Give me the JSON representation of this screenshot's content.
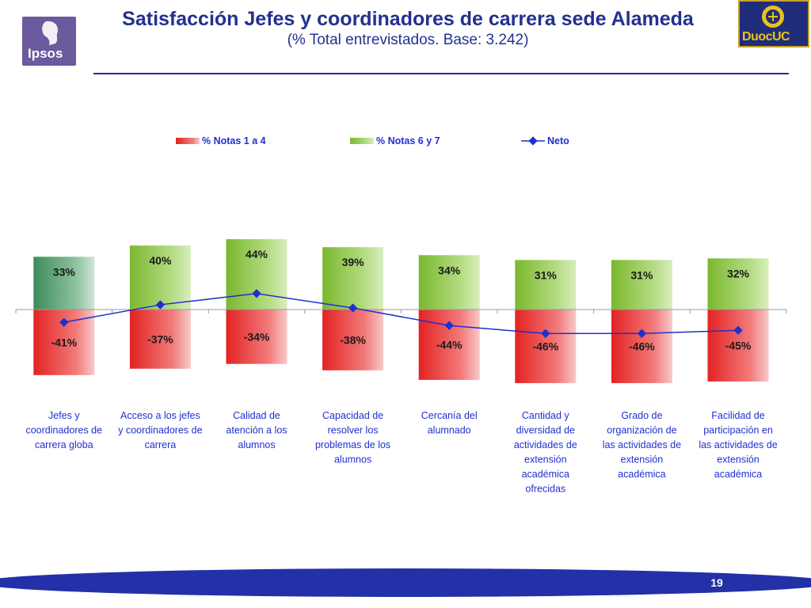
{
  "header": {
    "title": "Satisfacción Jefes y coordinadores de carrera sede Alameda",
    "subtitle": "(% Total entrevistados. Base: 3.242)",
    "logo_left": "Ipsos",
    "logo_right": "DuocUC"
  },
  "footer": {
    "page_number": "19"
  },
  "colors": {
    "title": "#22318f",
    "negative": "#e83a3a",
    "positive": "#8cc63f",
    "first_positive": "#4e9a6a",
    "line": "#1f2fd0",
    "footer": "#2330a8"
  },
  "chart_data": {
    "type": "bar",
    "categories": [
      "Jefes y coordinadores de carrera globa",
      "Acceso a los jefes y coordinadores de carrera",
      "Calidad de atención a los alumnos",
      "Capacidad de resolver los problemas de los alumnos",
      "Cercanía del alumnado",
      "Cantidad y diversidad de actividades de extensión académica ofrecidas",
      "Grado de organización de las actividades de extensión académica",
      "Facilidad de participación en las actividades de extensión académica"
    ],
    "category_lines": [
      [
        "Jefes y",
        "coordinadores de",
        "carrera globa"
      ],
      [
        "Acceso a los jefes",
        "y coordinadores de",
        "carrera"
      ],
      [
        "Calidad de",
        "atención a los",
        "alumnos"
      ],
      [
        "Capacidad de",
        "resolver los",
        "problemas de los",
        "alumnos"
      ],
      [
        "Cercanía del",
        "alumnado"
      ],
      [
        "Cantidad y",
        "diversidad de",
        "actividades de",
        "extensión",
        "académica",
        "ofrecidas"
      ],
      [
        "Grado de",
        "organización de",
        "las actividades de",
        "extensión",
        "académica"
      ],
      [
        "Facilidad de",
        "participación en",
        "las actividades de",
        "extensión",
        "académica"
      ]
    ],
    "series": [
      {
        "name": "% Notas 1 a 4",
        "kind": "bar",
        "values": [
          -41,
          -37,
          -34,
          -38,
          -44,
          -46,
          -46,
          -45
        ],
        "labels": [
          "-41%",
          "-37%",
          "-34%",
          "-38%",
          "-44%",
          "-46%",
          "-46%",
          "-45%"
        ]
      },
      {
        "name": "% Notas 6 y 7",
        "kind": "bar",
        "values": [
          33,
          40,
          44,
          39,
          34,
          31,
          31,
          32
        ],
        "labels": [
          "33%",
          "40%",
          "44%",
          "39%",
          "34%",
          "31%",
          "31%",
          "32%"
        ]
      },
      {
        "name": "Neto",
        "kind": "line",
        "values": [
          -8,
          3,
          10,
          1,
          -10,
          -15,
          -15,
          -13
        ]
      }
    ],
    "legend_position": "top",
    "ylim": [
      -50,
      50
    ]
  }
}
